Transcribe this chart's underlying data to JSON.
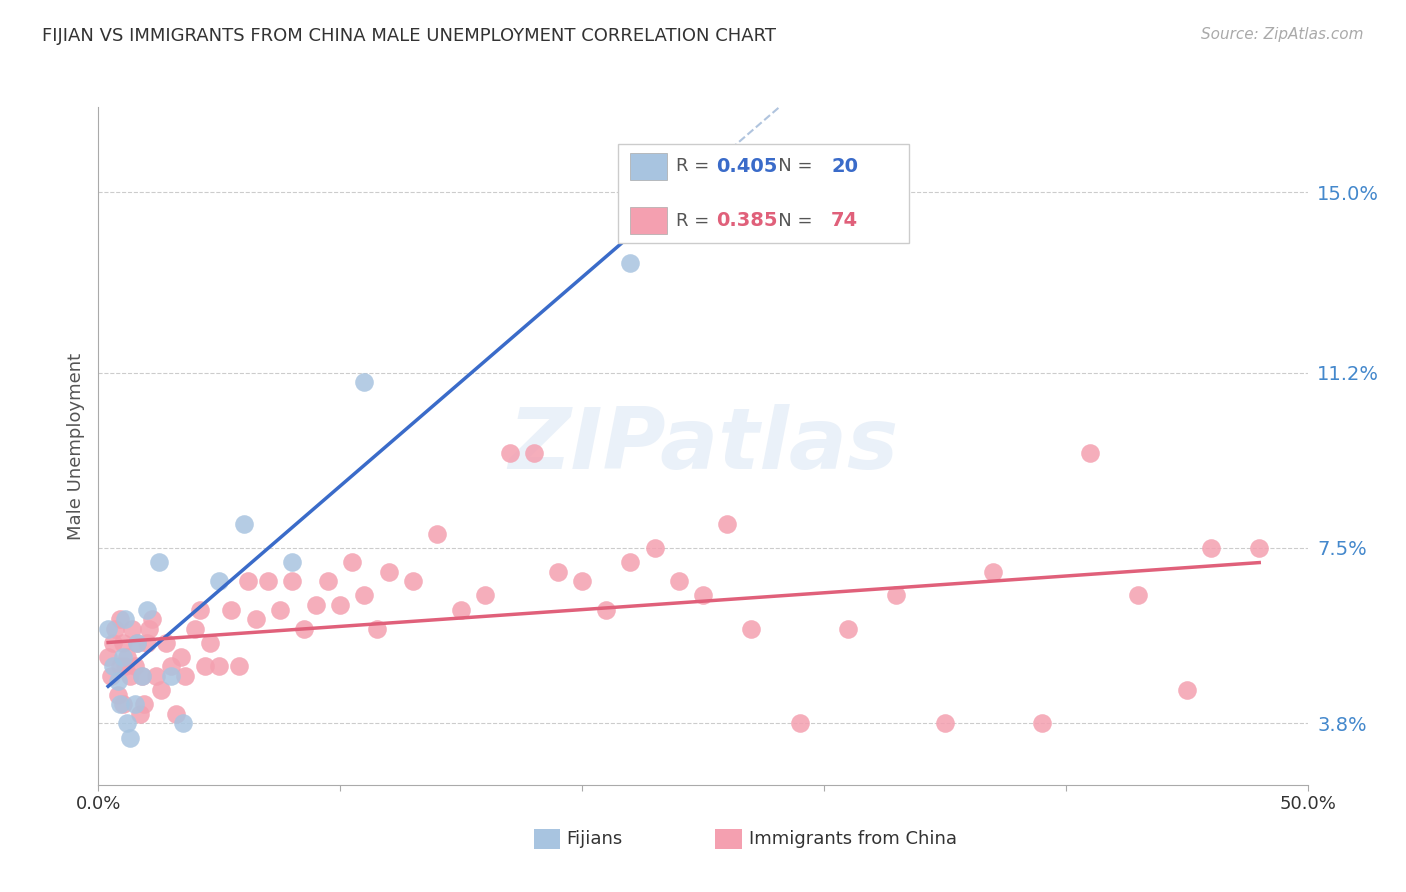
{
  "title": "FIJIAN VS IMMIGRANTS FROM CHINA MALE UNEMPLOYMENT CORRELATION CHART",
  "source": "Source: ZipAtlas.com",
  "ylabel": "Male Unemployment",
  "ytick_labels": [
    "3.8%",
    "7.5%",
    "11.2%",
    "15.0%"
  ],
  "ytick_values": [
    0.038,
    0.075,
    0.112,
    0.15
  ],
  "xlim": [
    0.0,
    0.5
  ],
  "ylim": [
    0.025,
    0.168
  ],
  "r1": "0.405",
  "n1": "20",
  "r2": "0.385",
  "n2": "74",
  "fijian_color": "#a8c4e0",
  "china_color": "#f4a0b0",
  "fijian_line_color": "#3a6bc9",
  "china_line_color": "#e0607a",
  "dashed_line_color": "#b0c4de",
  "watermark": "ZIPatlas",
  "background_color": "#ffffff",
  "fijians_x": [
    0.004,
    0.006,
    0.008,
    0.009,
    0.01,
    0.011,
    0.012,
    0.013,
    0.015,
    0.016,
    0.018,
    0.02,
    0.025,
    0.03,
    0.035,
    0.05,
    0.06,
    0.08,
    0.11,
    0.22
  ],
  "fijians_y": [
    0.058,
    0.05,
    0.047,
    0.042,
    0.052,
    0.06,
    0.038,
    0.035,
    0.042,
    0.055,
    0.048,
    0.062,
    0.072,
    0.048,
    0.038,
    0.068,
    0.08,
    0.072,
    0.11,
    0.135
  ],
  "china_x": [
    0.004,
    0.005,
    0.006,
    0.007,
    0.008,
    0.009,
    0.009,
    0.01,
    0.01,
    0.011,
    0.012,
    0.013,
    0.014,
    0.015,
    0.016,
    0.017,
    0.018,
    0.019,
    0.02,
    0.021,
    0.022,
    0.024,
    0.026,
    0.028,
    0.03,
    0.032,
    0.034,
    0.036,
    0.04,
    0.042,
    0.044,
    0.046,
    0.05,
    0.055,
    0.058,
    0.062,
    0.065,
    0.07,
    0.075,
    0.08,
    0.085,
    0.09,
    0.095,
    0.1,
    0.105,
    0.11,
    0.115,
    0.12,
    0.13,
    0.14,
    0.15,
    0.16,
    0.17,
    0.18,
    0.19,
    0.2,
    0.21,
    0.22,
    0.23,
    0.24,
    0.25,
    0.26,
    0.27,
    0.29,
    0.31,
    0.33,
    0.35,
    0.37,
    0.39,
    0.41,
    0.43,
    0.45,
    0.46,
    0.48
  ],
  "china_y": [
    0.052,
    0.048,
    0.055,
    0.058,
    0.044,
    0.06,
    0.05,
    0.055,
    0.042,
    0.05,
    0.052,
    0.048,
    0.058,
    0.05,
    0.055,
    0.04,
    0.048,
    0.042,
    0.055,
    0.058,
    0.06,
    0.048,
    0.045,
    0.055,
    0.05,
    0.04,
    0.052,
    0.048,
    0.058,
    0.062,
    0.05,
    0.055,
    0.05,
    0.062,
    0.05,
    0.068,
    0.06,
    0.068,
    0.062,
    0.068,
    0.058,
    0.063,
    0.068,
    0.063,
    0.072,
    0.065,
    0.058,
    0.07,
    0.068,
    0.078,
    0.062,
    0.065,
    0.095,
    0.095,
    0.07,
    0.068,
    0.062,
    0.072,
    0.075,
    0.068,
    0.065,
    0.08,
    0.058,
    0.038,
    0.058,
    0.065,
    0.038,
    0.07,
    0.038,
    0.095,
    0.065,
    0.045,
    0.075,
    0.075
  ]
}
